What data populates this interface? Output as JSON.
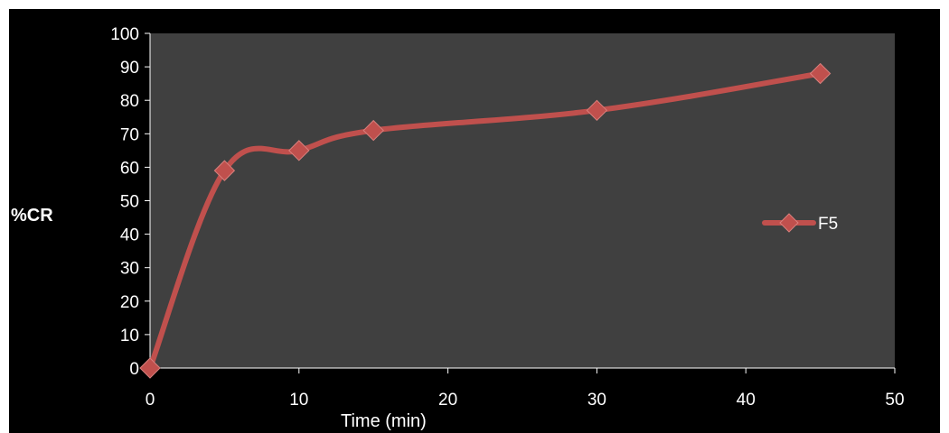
{
  "chart_data": {
    "type": "line",
    "xlabel": "Time (min)",
    "ylabel": "%CR",
    "xlim": [
      0,
      50
    ],
    "ylim": [
      0,
      100
    ],
    "x_ticks": [
      0,
      10,
      20,
      30,
      40,
      50
    ],
    "y_ticks": [
      0,
      10,
      20,
      30,
      40,
      50,
      60,
      70,
      80,
      90,
      100
    ],
    "grid": false,
    "smooth": true,
    "legend_position": "right",
    "plot_background": "#404040",
    "series": [
      {
        "name": "F5",
        "color": "#c0504d",
        "marker": "diamond",
        "x": [
          0,
          5,
          10,
          15,
          30,
          45
        ],
        "y": [
          0,
          59,
          65,
          71,
          77,
          88
        ]
      }
    ]
  }
}
